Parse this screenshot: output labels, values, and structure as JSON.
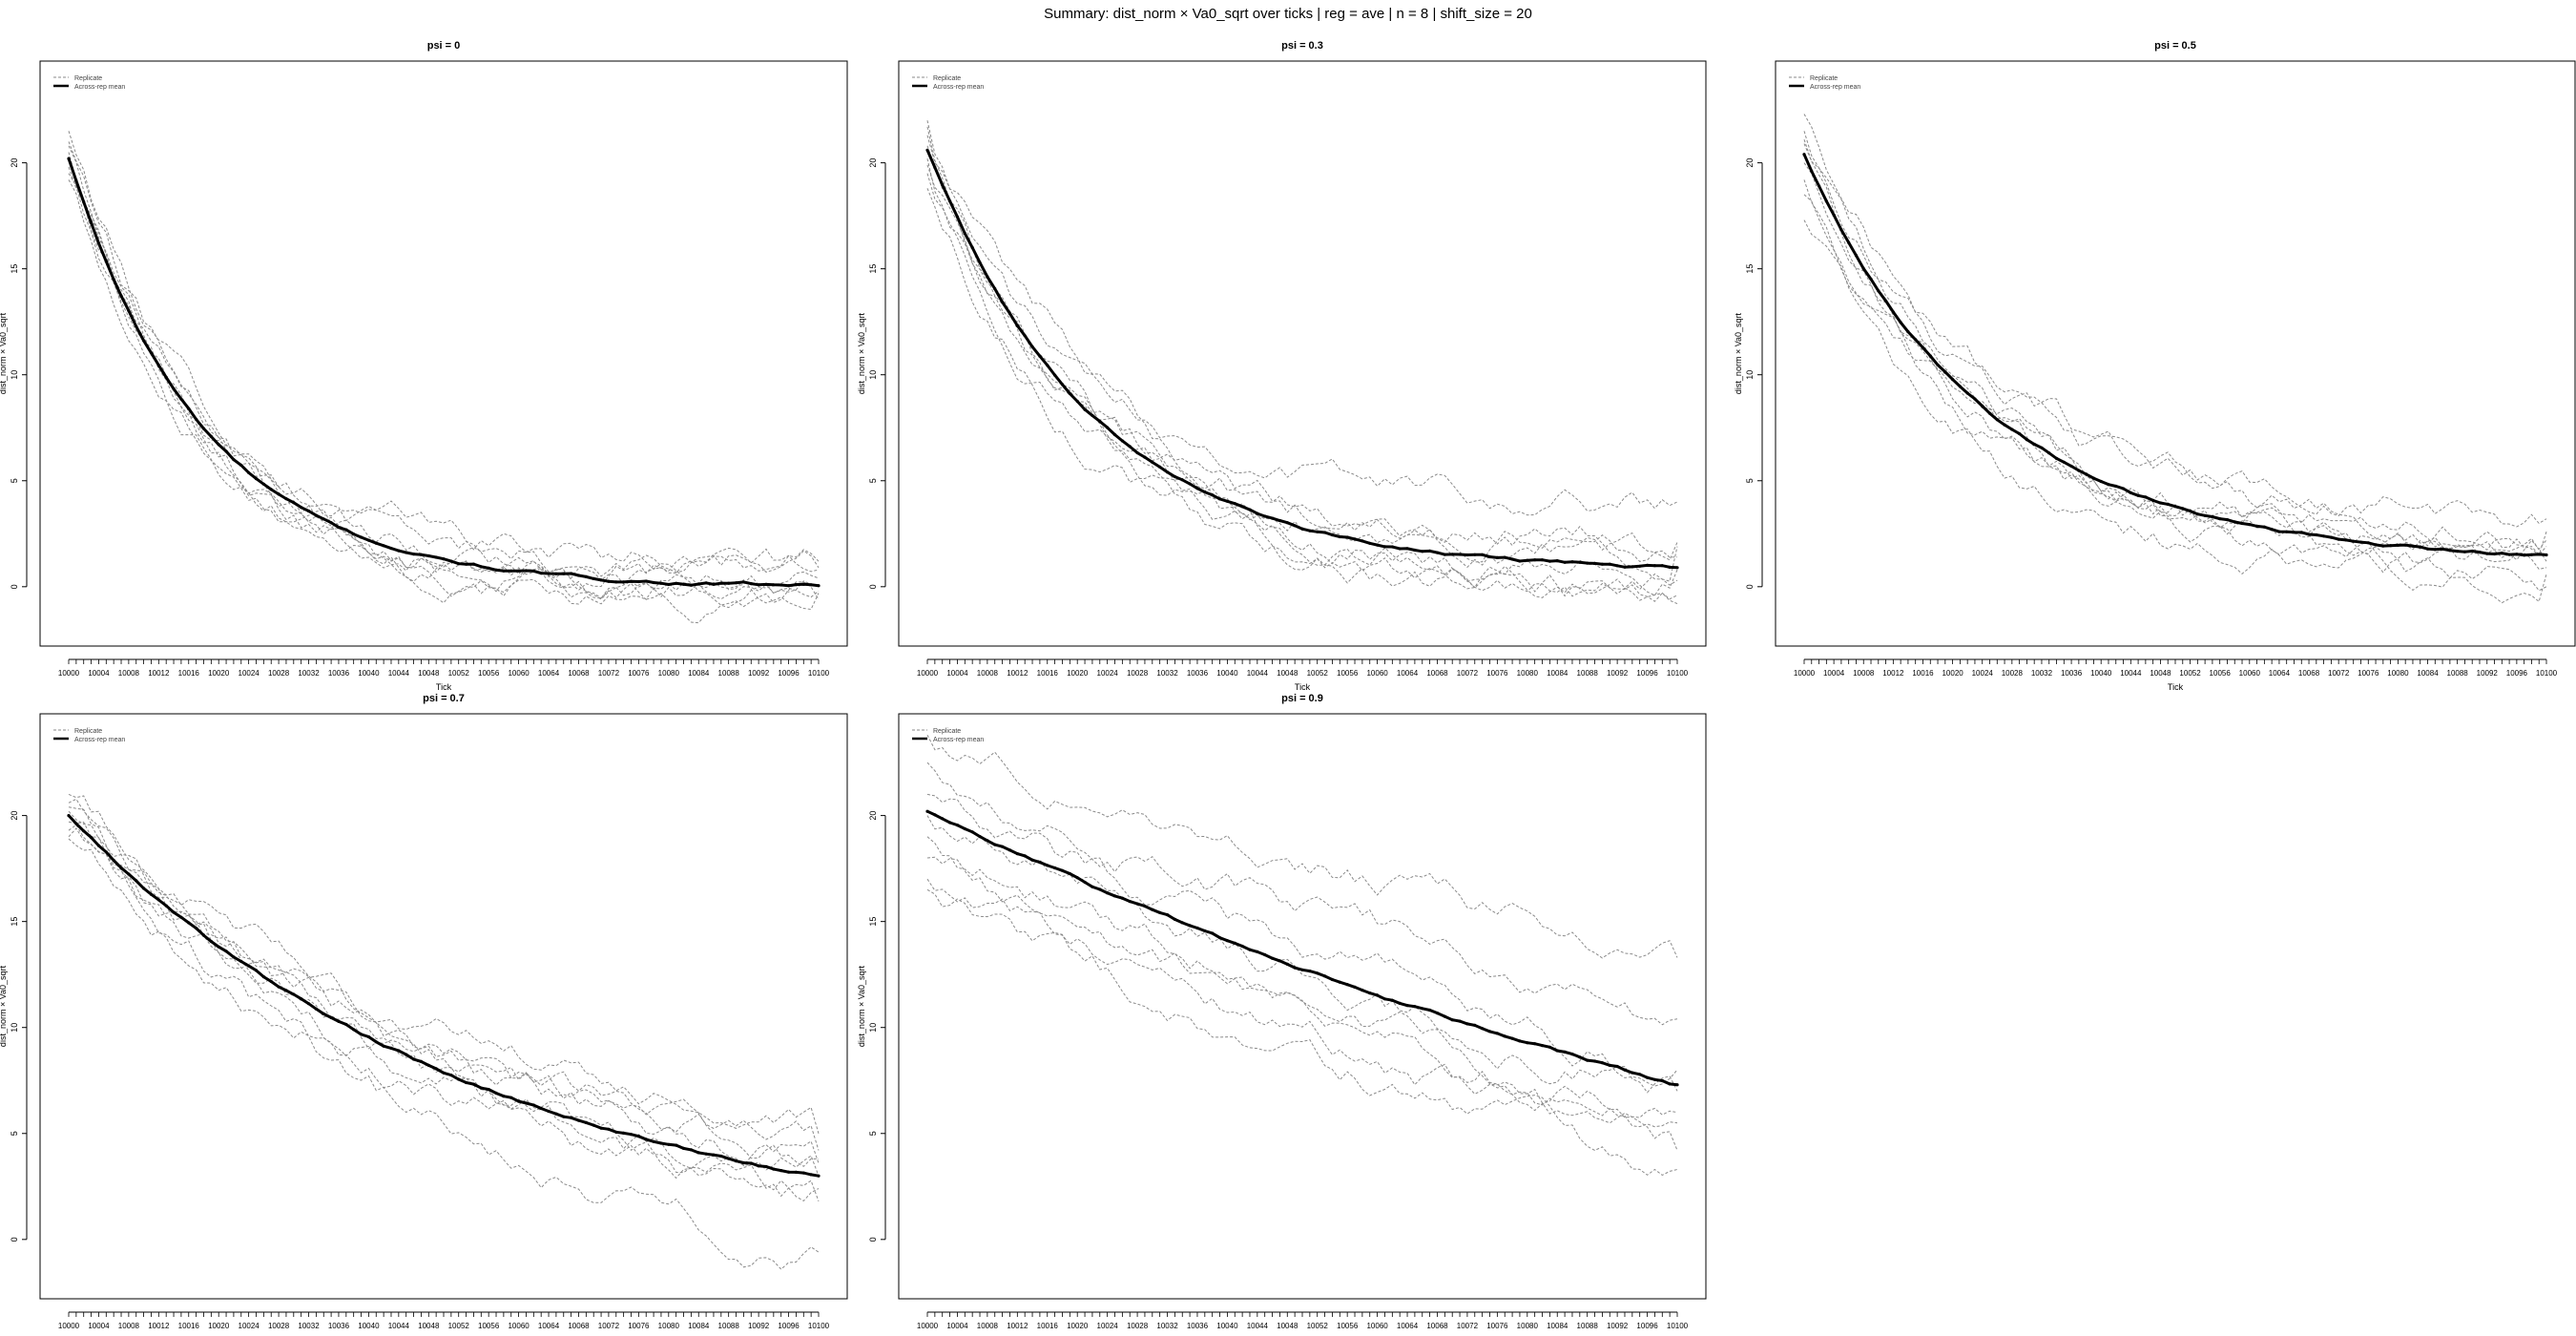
{
  "figure": {
    "title": "Summary: dist_norm × Va0_sqrt over ticks | reg = ave | n = 8 | shift_size = 20",
    "legend_labels": [
      "Replicate",
      "Across-rep mean"
    ],
    "colors": {
      "replicate": "#8a8a8a",
      "mean": "#000000",
      "axis": "#000000"
    }
  },
  "chart_data": [
    {
      "type": "line",
      "title": "psi = 0",
      "xlabel": "Tick",
      "ylabel": "dist_norm × Va0_sqrt",
      "x_start": 10000,
      "x_end": 10100,
      "x_tick_labels": [
        "10000",
        "10004",
        "10008",
        "10012",
        "10016",
        "10020",
        "10024",
        "10028",
        "10032",
        "10036",
        "10040",
        "10044",
        "10048",
        "10052",
        "10056",
        "10060",
        "10064",
        "10068",
        "10072",
        "10076",
        "10080",
        "10084",
        "10088",
        "10092",
        "10096",
        "10100"
      ],
      "y_ticks": [
        0,
        5,
        10,
        15,
        20
      ],
      "ylim": [
        -2.8,
        24.8
      ],
      "legend": "top-left",
      "mean": {
        "name": "Across-rep mean",
        "start": 20.2,
        "end": 0.05,
        "rate": 0.055
      },
      "replicates": [
        {
          "start": 21.5,
          "end": 1.2
        },
        {
          "start": 20.8,
          "end": 0.8
        },
        {
          "start": 20.3,
          "end": 0.4
        },
        {
          "start": 19.8,
          "end": 0.0
        },
        {
          "start": 19.2,
          "end": -0.3
        },
        {
          "start": 20.5,
          "end": -0.6
        },
        {
          "start": 21.0,
          "end": 0.9
        },
        {
          "start": 19.5,
          "end": -0.2
        }
      ]
    },
    {
      "type": "line",
      "title": "psi = 0.3",
      "xlabel": "Tick",
      "ylabel": "dist_norm × Va0_sqrt",
      "x_start": 10000,
      "x_end": 10100,
      "x_tick_labels": [
        "10000",
        "10004",
        "10008",
        "10012",
        "10016",
        "10020",
        "10024",
        "10028",
        "10032",
        "10036",
        "10040",
        "10044",
        "10048",
        "10052",
        "10056",
        "10060",
        "10064",
        "10068",
        "10072",
        "10076",
        "10080",
        "10084",
        "10088",
        "10092",
        "10096",
        "10100"
      ],
      "y_ticks": [
        0,
        5,
        10,
        15,
        20
      ],
      "ylim": [
        -2.8,
        24.8
      ],
      "legend": "top-left",
      "mean": {
        "name": "Across-rep mean",
        "start": 20.6,
        "end": 0.9,
        "rate": 0.045
      },
      "replicates": [
        {
          "start": 22.0,
          "end": 4.0
        },
        {
          "start": 21.3,
          "end": 2.1
        },
        {
          "start": 20.8,
          "end": 1.4
        },
        {
          "start": 20.2,
          "end": 0.8
        },
        {
          "start": 19.5,
          "end": 0.3
        },
        {
          "start": 18.8,
          "end": -0.4
        },
        {
          "start": 21.7,
          "end": -0.8
        },
        {
          "start": 19.9,
          "end": 1.9
        }
      ]
    },
    {
      "type": "line",
      "title": "psi = 0.5",
      "xlabel": "Tick",
      "ylabel": "dist_norm × Va0_sqrt",
      "x_start": 10000,
      "x_end": 10100,
      "x_tick_labels": [
        "10000",
        "10004",
        "10008",
        "10012",
        "10016",
        "10020",
        "10024",
        "10028",
        "10032",
        "10036",
        "10040",
        "10044",
        "10048",
        "10052",
        "10056",
        "10060",
        "10064",
        "10068",
        "10072",
        "10076",
        "10080",
        "10084",
        "10088",
        "10092",
        "10096",
        "10100"
      ],
      "y_ticks": [
        0,
        5,
        10,
        15,
        20
      ],
      "ylim": [
        -2.8,
        24.8
      ],
      "legend": "top-left",
      "mean": {
        "name": "Across-rep mean",
        "start": 20.4,
        "end": 1.5,
        "rate": 0.04
      },
      "replicates": [
        {
          "start": 22.3,
          "end": 3.2
        },
        {
          "start": 21.5,
          "end": 2.6
        },
        {
          "start": 20.9,
          "end": 1.9
        },
        {
          "start": 20.0,
          "end": 1.2
        },
        {
          "start": 19.2,
          "end": 0.6
        },
        {
          "start": 17.3,
          "end": 0.0
        },
        {
          "start": 18.5,
          "end": 2.2
        },
        {
          "start": 21.1,
          "end": 0.9
        }
      ]
    },
    {
      "type": "line",
      "title": "psi = 0.7",
      "xlabel": "Tick",
      "ylabel": "dist_norm × Va0_sqrt",
      "x_start": 10000,
      "x_end": 10100,
      "x_tick_labels": [
        "10000",
        "10004",
        "10008",
        "10012",
        "10016",
        "10020",
        "10024",
        "10028",
        "10032",
        "10036",
        "10040",
        "10044",
        "10048",
        "10052",
        "10056",
        "10060",
        "10064",
        "10068",
        "10072",
        "10076",
        "10080",
        "10084",
        "10088",
        "10092",
        "10096",
        "10100"
      ],
      "y_ticks": [
        0,
        5,
        10,
        15,
        20
      ],
      "ylim": [
        -2.8,
        24.8
      ],
      "legend": "top-left",
      "mean": {
        "name": "Across-rep mean",
        "start": 20.0,
        "end": 3.0,
        "rate": 0.018
      },
      "replicates": [
        {
          "start": 21.0,
          "end": 5.0
        },
        {
          "start": 20.6,
          "end": 4.2
        },
        {
          "start": 20.2,
          "end": 3.6
        },
        {
          "start": 19.7,
          "end": 3.0
        },
        {
          "start": 19.3,
          "end": 2.4
        },
        {
          "start": 18.9,
          "end": 1.8
        },
        {
          "start": 20.4,
          "end": -0.6
        },
        {
          "start": 19.0,
          "end": 3.8
        }
      ]
    },
    {
      "type": "line",
      "title": "psi = 0.9",
      "xlabel": "Tick",
      "ylabel": "dist_norm × Va0_sqrt",
      "x_start": 10000,
      "x_end": 10100,
      "x_tick_labels": [
        "10000",
        "10004",
        "10008",
        "10012",
        "10016",
        "10020",
        "10024",
        "10028",
        "10032",
        "10036",
        "10040",
        "10044",
        "10048",
        "10052",
        "10056",
        "10060",
        "10064",
        "10068",
        "10072",
        "10076",
        "10080",
        "10084",
        "10088",
        "10092",
        "10096",
        "10100"
      ],
      "y_ticks": [
        0,
        5,
        10,
        15,
        20
      ],
      "ylim": [
        -2.8,
        24.8
      ],
      "legend": "top-left",
      "mean": {
        "name": "Across-rep mean",
        "start": 20.2,
        "end": 7.3,
        "rate": 0.006
      },
      "replicates": [
        {
          "start": 23.8,
          "end": 13.3
        },
        {
          "start": 22.5,
          "end": 10.4
        },
        {
          "start": 21.0,
          "end": 8.0
        },
        {
          "start": 20.0,
          "end": 7.0
        },
        {
          "start": 19.0,
          "end": 6.0
        },
        {
          "start": 18.0,
          "end": 5.5
        },
        {
          "start": 17.0,
          "end": 4.2
        },
        {
          "start": 16.5,
          "end": 3.3
        }
      ]
    }
  ]
}
